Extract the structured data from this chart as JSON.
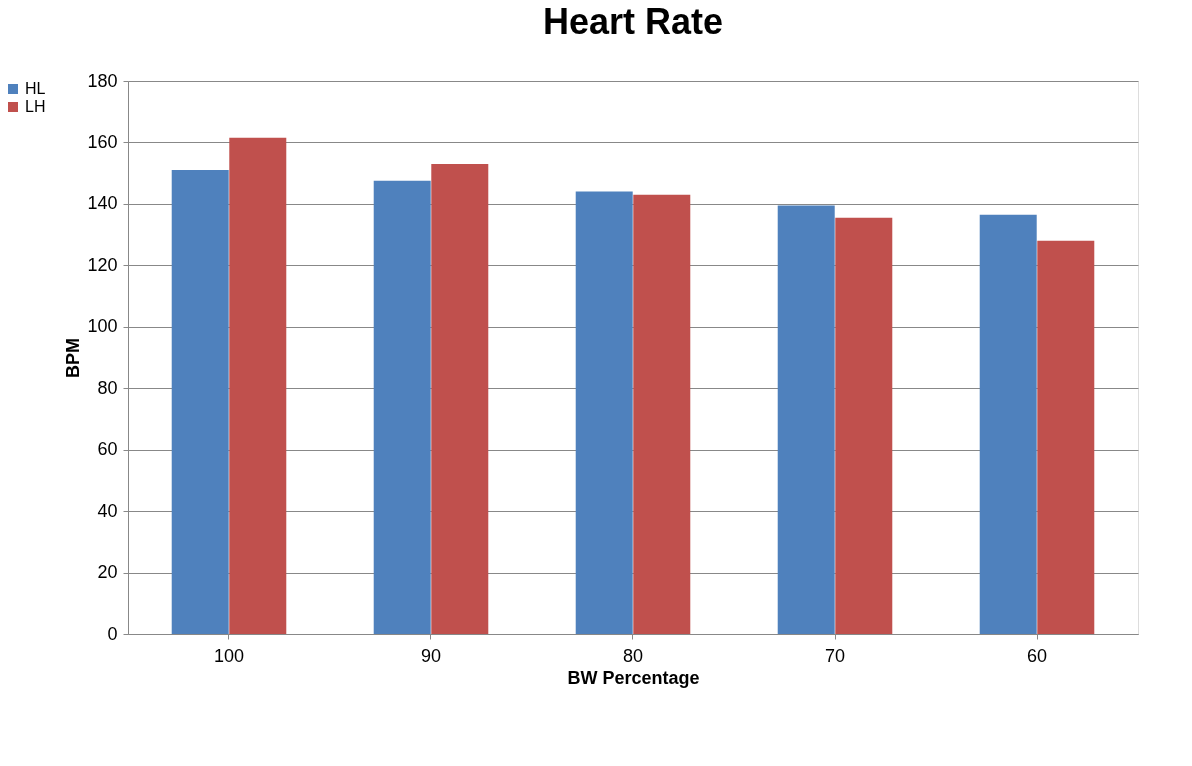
{
  "chart_data": {
    "type": "bar",
    "title": "Heart Rate",
    "xlabel": "BW Percentage",
    "ylabel": "BPM",
    "categories": [
      "100",
      "90",
      "80",
      "70",
      "60"
    ],
    "series": [
      {
        "name": "HL",
        "color": "#4f81bd",
        "values": [
          151,
          147.5,
          144,
          139.5,
          136.5
        ]
      },
      {
        "name": "LH",
        "color": "#c0504d",
        "values": [
          161.5,
          153,
          143,
          135.5,
          128
        ]
      }
    ],
    "ylim": [
      0,
      180
    ],
    "yticks": [
      0,
      20,
      40,
      60,
      80,
      100,
      120,
      140,
      160,
      180
    ],
    "grid": "y",
    "legend": "left"
  }
}
